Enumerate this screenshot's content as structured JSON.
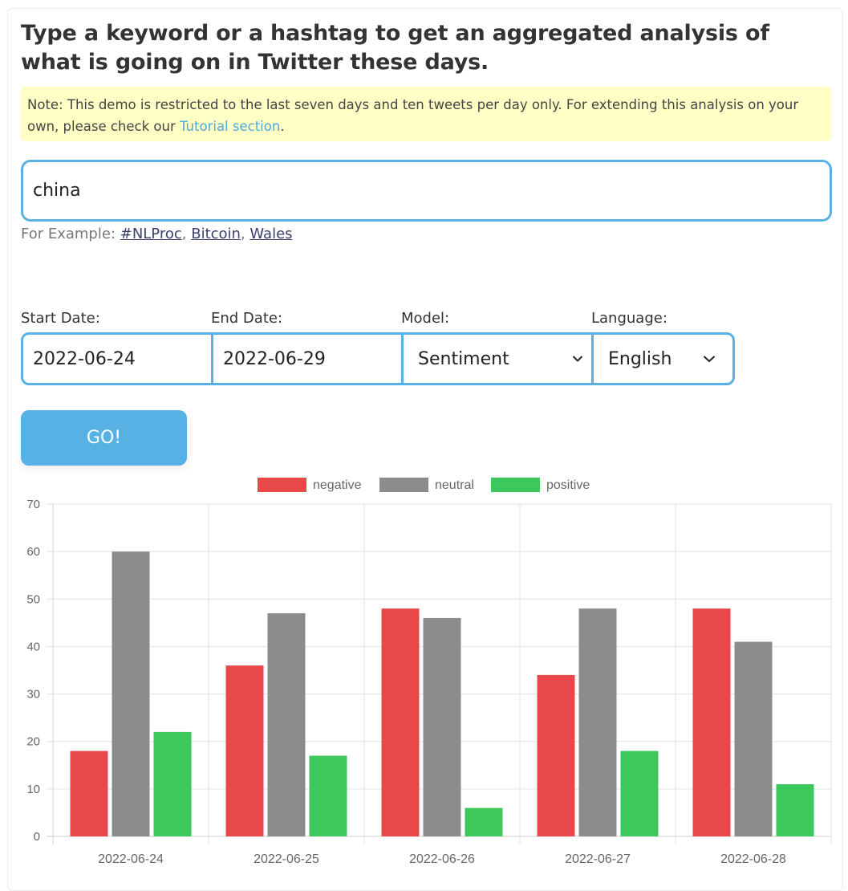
{
  "headline": "Type a keyword or a hashtag to get an aggregated analysis of what is going on in Twitter these days.",
  "note": {
    "text": "Note: This demo is restricted to the last seven days and ten tweets per day only. For extending this analysis on your own, please check our ",
    "link": "Tutorial section",
    "end": "."
  },
  "search": {
    "value": "china"
  },
  "examples": {
    "prefix": "For Example: ",
    "items": [
      "#NLProc",
      "Bitcoin",
      "Wales"
    ]
  },
  "filters": {
    "start_label": "Start Date:",
    "start_value": "2022-06-24",
    "end_label": "End Date:",
    "end_value": "2022-06-29",
    "model_label": "Model:",
    "model_value": "Sentiment",
    "language_label": "Language:",
    "language_value": "English"
  },
  "go_label": "GO!",
  "colors": {
    "accent": "#59b1e3",
    "note_bg": "#ffffc5"
  },
  "chart_data": {
    "type": "bar",
    "categories": [
      "2022-06-24",
      "2022-06-25",
      "2022-06-26",
      "2022-06-27",
      "2022-06-28"
    ],
    "series": [
      {
        "name": "negative",
        "color": "#e8484a",
        "values": [
          18,
          36,
          48,
          34,
          48
        ]
      },
      {
        "name": "neutral",
        "color": "#8c8c8c",
        "values": [
          60,
          47,
          46,
          48,
          41
        ]
      },
      {
        "name": "positive",
        "color": "#3cc85b",
        "values": [
          22,
          17,
          6,
          18,
          11
        ]
      }
    ],
    "ylim": [
      0,
      70
    ],
    "yticks": [
      0,
      10,
      20,
      30,
      40,
      50,
      60,
      70
    ],
    "grid": true,
    "legend": "top-center"
  }
}
